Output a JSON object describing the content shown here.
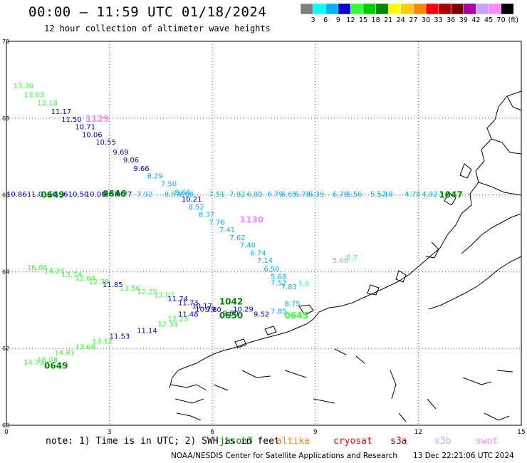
{
  "title": "00:00 – 11:59 UTC 01/18/2024",
  "subtitle": "12 hour collection of altimeter wave heights",
  "legend": {
    "unit": "(ft)",
    "bins": [
      {
        "label": "3",
        "color": "#808080"
      },
      {
        "label": "6",
        "color": "#00ffff"
      },
      {
        "label": "9",
        "color": "#00b0ff"
      },
      {
        "label": "12",
        "color": "#0000dd"
      },
      {
        "label": "15",
        "color": "#33ff33"
      },
      {
        "label": "18",
        "color": "#00cc00"
      },
      {
        "label": "21",
        "color": "#008800"
      },
      {
        "label": "24",
        "color": "#ffff00"
      },
      {
        "label": "27",
        "color": "#ffcc00"
      },
      {
        "label": "30",
        "color": "#ff8800"
      },
      {
        "label": "33",
        "color": "#ff0000"
      },
      {
        "label": "36",
        "color": "#aa0000"
      },
      {
        "label": "39",
        "color": "#770000"
      },
      {
        "label": "42",
        "color": "#aa00aa"
      },
      {
        "label": "45",
        "color": "#c8a0ff"
      },
      {
        "label": "70",
        "color": "#ff88ff"
      },
      {
        "label": "",
        "color": "#000000"
      }
    ]
  },
  "axes": {
    "x_ticks": [
      "0",
      "3",
      "6",
      "9",
      "12",
      "15"
    ],
    "y_ticks": [
      "70",
      "68",
      "66",
      "64",
      "62",
      "60"
    ],
    "xlim": [
      0,
      15
    ],
    "ylim": [
      60,
      70
    ],
    "grid": true
  },
  "tracks": [
    {
      "points": [
        {
          "lon": 0.2,
          "lat": 68.85,
          "v": "13.30",
          "c": "#33ff33"
        },
        {
          "lon": 0.5,
          "lat": 68.62,
          "v": "13.03",
          "c": "#33ff33"
        },
        {
          "lon": 0.9,
          "lat": 68.4,
          "v": "12.18",
          "c": "#33ff33"
        },
        {
          "lon": 1.3,
          "lat": 68.18,
          "v": "11.17",
          "c": "#0000dd"
        },
        {
          "lon": 1.6,
          "lat": 67.98,
          "v": "11.50",
          "c": "#0000dd"
        },
        {
          "lon": 2.0,
          "lat": 67.78,
          "v": "10.71",
          "c": "#0000dd"
        },
        {
          "lon": 2.2,
          "lat": 67.58,
          "v": "10.06",
          "c": "#0000dd"
        },
        {
          "lon": 2.6,
          "lat": 67.38,
          "v": "10.55",
          "c": "#0000dd"
        },
        {
          "lon": 3.1,
          "lat": 67.12,
          "v": "9.69",
          "c": "#0000dd"
        },
        {
          "lon": 3.4,
          "lat": 66.92,
          "v": "9.06",
          "c": "#0000dd"
        },
        {
          "lon": 3.7,
          "lat": 66.7,
          "v": "9.66",
          "c": "#0000dd"
        },
        {
          "lon": 4.1,
          "lat": 66.5,
          "v": "8.29",
          "c": "#00b0ff"
        },
        {
          "lon": 4.5,
          "lat": 66.3,
          "v": "7.50",
          "c": "#00b0ff"
        },
        {
          "lon": 4.9,
          "lat": 66.08,
          "v": "8.60",
          "c": "#00b0ff"
        },
        {
          "lon": 5.1,
          "lat": 65.9,
          "v": "10.21",
          "c": "#0000dd"
        },
        {
          "lon": 5.3,
          "lat": 65.7,
          "v": "8.52",
          "c": "#00b0ff"
        },
        {
          "lon": 5.6,
          "lat": 65.5,
          "v": "8.37",
          "c": "#00b0ff"
        },
        {
          "lon": 5.9,
          "lat": 65.3,
          "v": "7.76",
          "c": "#00b0ff"
        },
        {
          "lon": 6.2,
          "lat": 65.1,
          "v": "7.41",
          "c": "#00b0ff"
        },
        {
          "lon": 6.5,
          "lat": 64.9,
          "v": "7.62",
          "c": "#00b0ff"
        },
        {
          "lon": 6.8,
          "lat": 64.7,
          "v": "7.40",
          "c": "#00b0ff"
        },
        {
          "lon": 7.1,
          "lat": 64.5,
          "v": "6.74",
          "c": "#00b0ff"
        },
        {
          "lon": 7.3,
          "lat": 64.3,
          "v": "7.14",
          "c": "#00b0ff"
        },
        {
          "lon": 7.5,
          "lat": 64.08,
          "v": "6.50",
          "c": "#00b0ff"
        },
        {
          "lon": 7.7,
          "lat": 63.88,
          "v": "5.68",
          "c": "#00b0ff"
        },
        {
          "lon": 7.7,
          "lat": 63.72,
          "v": "7.52",
          "c": "#00b0ff"
        }
      ]
    },
    {
      "points": [
        {
          "lon": 0.0,
          "lat": 66.03,
          "v": "10.86",
          "c": "#0000dd"
        },
        {
          "lon": 0.6,
          "lat": 66.03,
          "v": "11.01",
          "c": "#0000dd"
        },
        {
          "lon": 1.2,
          "lat": 66.03,
          "v": "10.96",
          "c": "#0000dd"
        },
        {
          "lon": 1.8,
          "lat": 66.03,
          "v": "10.50",
          "c": "#0000dd"
        },
        {
          "lon": 2.3,
          "lat": 66.03,
          "v": "10.00",
          "c": "#0000dd"
        },
        {
          "lon": 2.8,
          "lat": 66.03,
          "v": "9.67",
          "c": "#0000dd"
        },
        {
          "lon": 3.2,
          "lat": 66.03,
          "v": "9.77",
          "c": "#0000dd"
        },
        {
          "lon": 3.8,
          "lat": 66.03,
          "v": "7.92",
          "c": "#00b0ff"
        },
        {
          "lon": 4.6,
          "lat": 66.03,
          "v": "8.67",
          "c": "#00b0ff"
        },
        {
          "lon": 5.0,
          "lat": 66.03,
          "v": "8.08",
          "c": "#00b0ff"
        },
        {
          "lon": 5.9,
          "lat": 66.03,
          "v": "7.51",
          "c": "#00b0ff"
        },
        {
          "lon": 6.5,
          "lat": 66.03,
          "v": "7.92",
          "c": "#00b0ff"
        },
        {
          "lon": 7.0,
          "lat": 66.03,
          "v": "6.80",
          "c": "#00b0ff"
        },
        {
          "lon": 7.6,
          "lat": 66.03,
          "v": "6.79",
          "c": "#00b0ff"
        },
        {
          "lon": 8.0,
          "lat": 66.03,
          "v": "6.65",
          "c": "#00b0ff"
        },
        {
          "lon": 8.4,
          "lat": 66.03,
          "v": "6.78",
          "c": "#00b0ff"
        },
        {
          "lon": 8.8,
          "lat": 66.03,
          "v": "6.39",
          "c": "#00b0ff"
        },
        {
          "lon": 9.5,
          "lat": 66.03,
          "v": "6.78",
          "c": "#00b0ff"
        },
        {
          "lon": 9.9,
          "lat": 66.03,
          "v": "6.56",
          "c": "#00b0ff"
        },
        {
          "lon": 10.6,
          "lat": 66.03,
          "v": "5.57",
          "c": "#00b0ff"
        },
        {
          "lon": 10.8,
          "lat": 66.03,
          "v": "5.18",
          "c": "#00b0ff"
        },
        {
          "lon": 11.6,
          "lat": 66.03,
          "v": "4.78",
          "c": "#00b0ff"
        },
        {
          "lon": 12.1,
          "lat": 66.03,
          "v": "4.92",
          "c": "#00b0ff"
        }
      ]
    },
    {
      "points": [
        {
          "lon": 0.6,
          "lat": 64.12,
          "v": "16.06",
          "c": "#33ff33"
        },
        {
          "lon": 1.1,
          "lat": 64.03,
          "v": "14.26",
          "c": "#33ff33"
        },
        {
          "lon": 1.6,
          "lat": 63.93,
          "v": "13.74",
          "c": "#33ff33"
        },
        {
          "lon": 2.0,
          "lat": 63.84,
          "v": "12.64",
          "c": "#33ff33"
        },
        {
          "lon": 2.4,
          "lat": 63.75,
          "v": "12.39",
          "c": "#33ff33"
        },
        {
          "lon": 2.8,
          "lat": 63.67,
          "v": "11.85",
          "c": "#0000dd"
        },
        {
          "lon": 3.3,
          "lat": 63.58,
          "v": "13.56",
          "c": "#33ff33"
        },
        {
          "lon": 3.8,
          "lat": 63.49,
          "v": "12.25",
          "c": "#33ff33"
        },
        {
          "lon": 4.3,
          "lat": 63.4,
          "v": "12.07",
          "c": "#33ff33"
        },
        {
          "lon": 4.7,
          "lat": 63.3,
          "v": "11.74",
          "c": "#0000dd"
        },
        {
          "lon": 5.0,
          "lat": 63.2,
          "v": "11.73",
          "c": "#0000dd"
        },
        {
          "lon": 5.4,
          "lat": 63.12,
          "v": "10.17",
          "c": "#0000dd"
        },
        {
          "lon": 5.8,
          "lat": 63.02,
          "v": "9.80",
          "c": "#0000dd"
        },
        {
          "lon": 6.3,
          "lat": 62.93,
          "v": "9.80",
          "c": "#0000dd"
        }
      ]
    },
    {
      "points": [
        {
          "lon": 0.5,
          "lat": 61.65,
          "v": "14.73",
          "c": "#33ff33"
        },
        {
          "lon": 0.9,
          "lat": 61.72,
          "v": "15.08",
          "c": "#33ff33"
        },
        {
          "lon": 1.4,
          "lat": 61.9,
          "v": "14.81",
          "c": "#33ff33"
        },
        {
          "lon": 2.0,
          "lat": 62.05,
          "v": "13.68",
          "c": "#33ff33"
        },
        {
          "lon": 2.5,
          "lat": 62.2,
          "v": "13.12",
          "c": "#33ff33"
        },
        {
          "lon": 3.0,
          "lat": 62.33,
          "v": "11.53",
          "c": "#0000dd"
        },
        {
          "lon": 3.8,
          "lat": 62.48,
          "v": "11.14",
          "c": "#0000dd"
        },
        {
          "lon": 4.4,
          "lat": 62.64,
          "v": "12.34",
          "c": "#33ff33"
        },
        {
          "lon": 4.7,
          "lat": 62.78,
          "v": "12.23",
          "c": "#33ff33"
        },
        {
          "lon": 5.0,
          "lat": 62.9,
          "v": "11.48",
          "c": "#0000dd"
        },
        {
          "lon": 5.5,
          "lat": 63.03,
          "v": "10.79",
          "c": "#0000dd"
        },
        {
          "lon": 6.6,
          "lat": 63.03,
          "v": "10.29",
          "c": "#0000dd"
        },
        {
          "lon": 7.2,
          "lat": 62.9,
          "v": "9.52",
          "c": "#0000dd"
        },
        {
          "lon": 7.7,
          "lat": 62.98,
          "v": "7.85",
          "c": "#00b0ff"
        },
        {
          "lon": 8.1,
          "lat": 63.18,
          "v": "8.75",
          "c": "#00b0ff"
        },
        {
          "lon": 8.0,
          "lat": 63.62,
          "v": "7.83",
          "c": "#00b0ff"
        }
      ]
    },
    {
      "points": [
        {
          "lon": 9.5,
          "lat": 64.3,
          "v": "5.68",
          "c": "#b0b0b0"
        },
        {
          "lon": 9.9,
          "lat": 64.38,
          "v": "5.7",
          "c": "#00ffff"
        },
        {
          "lon": 8.5,
          "lat": 63.7,
          "v": "5.6",
          "c": "#00ffff"
        }
      ]
    }
  ],
  "pass_times": [
    {
      "lon": 2.3,
      "lat": 67.98,
      "t": "1129",
      "c": "#ff88ff"
    },
    {
      "lon": 6.8,
      "lat": 65.35,
      "t": "1130",
      "c": "#ff88ff"
    },
    {
      "lon": 1.0,
      "lat": 66.0,
      "t": "0649",
      "c": "#008800"
    },
    {
      "lon": 2.8,
      "lat": 66.03,
      "t": "0646",
      "c": "#008800"
    },
    {
      "lon": 12.6,
      "lat": 66.0,
      "t": "1047",
      "c": "#008800"
    },
    {
      "lon": 6.2,
      "lat": 63.22,
      "t": "1042",
      "c": "#008800"
    },
    {
      "lon": 6.2,
      "lat": 62.86,
      "t": "0650",
      "c": "#008800"
    },
    {
      "lon": 1.1,
      "lat": 61.55,
      "t": "0649",
      "c": "#008800"
    },
    {
      "lon": 8.1,
      "lat": 62.86,
      "t": "0645",
      "c": "#33ff33"
    }
  ],
  "note": "note: 1) Time is in UTC; 2) SWH is in feet",
  "satellites": [
    {
      "name": "jason3",
      "color": "#008800"
    },
    {
      "name": "altika",
      "color": "#ff8800"
    },
    {
      "name": "cryosat",
      "color": "#ff0000"
    },
    {
      "name": "s3a",
      "color": "#aa0000"
    },
    {
      "name": "s3b",
      "color": "#c8a0ff"
    },
    {
      "name": "swot",
      "color": "#ff88ff"
    }
  ],
  "footer": {
    "left": "NOAA/NESDIS Center for Satellite Applications and Research",
    "right": "13 Dec 22:21:06 UTC 2024"
  }
}
